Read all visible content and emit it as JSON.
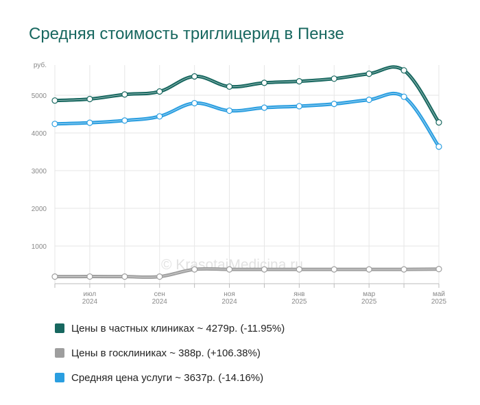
{
  "chart_data": {
    "type": "line",
    "title": "Средняя стоимость триглицерид в Пензе",
    "ylabel": "руб.",
    "ylim": [
      0,
      5800
    ],
    "yticks": [
      1000,
      2000,
      3000,
      4000,
      5000
    ],
    "x": [
      "2024-06",
      "2024-07",
      "2024-08",
      "2024-09",
      "2024-10",
      "2024-11",
      "2024-12",
      "2025-01",
      "2025-02",
      "2025-03",
      "2025-04",
      "2025-05"
    ],
    "xtick_labels": [
      {
        "index": 1,
        "month": "июл",
        "year": "2024"
      },
      {
        "index": 3,
        "month": "сен",
        "year": "2024"
      },
      {
        "index": 5,
        "month": "ноя",
        "year": "2024"
      },
      {
        "index": 7,
        "month": "янв",
        "year": "2025"
      },
      {
        "index": 9,
        "month": "мар",
        "year": "2025"
      },
      {
        "index": 11,
        "month": "май",
        "year": "2025"
      }
    ],
    "grid": true,
    "legend_position": "bottom-left",
    "watermark": "© KrasotaiMedicina.ru",
    "series": [
      {
        "name": "Цены в частных клиниках",
        "legend_label": "Цены в частных клиниках ~ 4279р. (-11.95%)",
        "color": "#17675f",
        "values": [
          4860,
          4900,
          5020,
          5100,
          5500,
          5230,
          5330,
          5370,
          5440,
          5570,
          5660,
          4279
        ]
      },
      {
        "name": "Цены в госклиниках",
        "legend_label": "Цены в госклиниках ~ 388р. (+106.38%)",
        "color": "#9e9e9e",
        "values": [
          188,
          190,
          188,
          188,
          380,
          380,
          380,
          380,
          380,
          380,
          380,
          388
        ]
      },
      {
        "name": "Средняя цена услуги",
        "legend_label": "Средняя цена услуги ~ 3637р. (-14.16%)",
        "color": "#2a9ee0",
        "values": [
          4240,
          4270,
          4330,
          4440,
          4790,
          4590,
          4670,
          4710,
          4770,
          4880,
          4960,
          3637
        ]
      }
    ]
  }
}
